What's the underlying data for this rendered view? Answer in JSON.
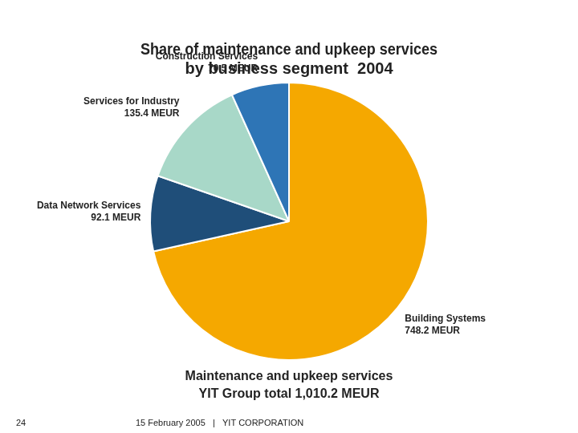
{
  "chart_data": {
    "type": "pie",
    "title": [
      "Share of maintenance and upkeep services",
      "by business segment  2004"
    ],
    "categories": [
      "Building Systems",
      "Data Network Services",
      "Services for Industry",
      "Construction Services"
    ],
    "values": [
      748.2,
      92.1,
      135.4,
      70.5
    ],
    "value_labels": [
      "748.2 MEUR",
      "92.1 MEUR",
      "135.4 MEUR",
      "70.5 MEUR"
    ],
    "colors": [
      "#F5A800",
      "#1F4E79",
      "#A8D8C8",
      "#2E75B6"
    ],
    "data_labels": true,
    "legend": false,
    "annotations": [
      "Maintenance and upkeep services",
      "YIT Group total 1,010.2 MEUR"
    ],
    "footer": [
      "24",
      "15 February 2005   |   YIT CORPORATION"
    ]
  }
}
